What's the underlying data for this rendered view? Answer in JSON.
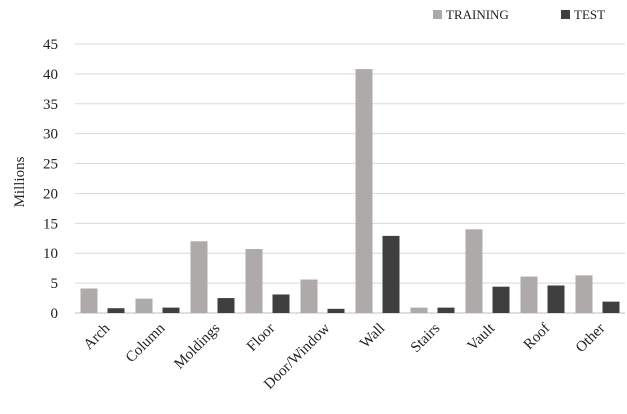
{
  "chart_data": {
    "type": "bar",
    "title": "",
    "xlabel": "",
    "ylabel": "Millions",
    "ylim": [
      0,
      45
    ],
    "yticks": [
      0,
      5,
      10,
      15,
      20,
      25,
      30,
      35,
      40,
      45
    ],
    "grid": true,
    "legend_position": "top-right",
    "categories": [
      "Arch",
      "Column",
      "Moldings",
      "Floor",
      "Door/Window",
      "Wall",
      "Stairs",
      "Vault",
      "Roof",
      "Other"
    ],
    "series": [
      {
        "name": "TRAINING",
        "color": "#aeaaaa",
        "values": [
          4.1,
          2.4,
          12.0,
          10.7,
          5.6,
          40.8,
          0.9,
          14.0,
          6.1,
          6.3
        ]
      },
      {
        "name": "TEST",
        "color": "#3f3f3f",
        "values": [
          0.8,
          0.9,
          2.5,
          3.1,
          0.7,
          12.9,
          0.9,
          4.4,
          4.6,
          1.9
        ]
      }
    ]
  }
}
